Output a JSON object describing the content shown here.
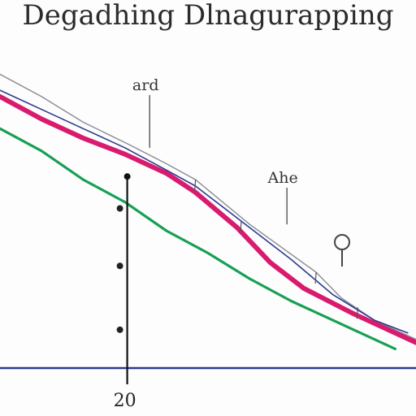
{
  "chart_data": {
    "type": "line",
    "title": "Degadhing Dlnagurapping",
    "xlim": [
      0,
      100
    ],
    "ylim": [
      0,
      100
    ],
    "grid": false,
    "x_tick_labels": [
      {
        "x": 30,
        "label": "20"
      }
    ],
    "series": [
      {
        "color": "#8a8a95",
        "points": [
          [
            0,
            92
          ],
          [
            10,
            85
          ],
          [
            20,
            77
          ],
          [
            31,
            70
          ],
          [
            40,
            64
          ],
          [
            47,
            59
          ],
          [
            60,
            45
          ],
          [
            76,
            30
          ],
          [
            82,
            22
          ],
          [
            90,
            15
          ],
          [
            100,
            9
          ]
        ]
      },
      {
        "color": "#2b3a8f",
        "points": [
          [
            0,
            87
          ],
          [
            10,
            81
          ],
          [
            20,
            75
          ],
          [
            30,
            69
          ],
          [
            40,
            62
          ],
          [
            47,
            57
          ],
          [
            58,
            46
          ],
          [
            70,
            34
          ],
          [
            80,
            23
          ],
          [
            90,
            15
          ],
          [
            98,
            11
          ]
        ]
      },
      {
        "color": "#d81b6e",
        "points": [
          [
            0,
            85
          ],
          [
            10,
            78
          ],
          [
            20,
            72
          ],
          [
            30,
            67
          ],
          [
            40,
            61
          ],
          [
            47,
            55
          ],
          [
            57,
            44
          ],
          [
            65,
            33
          ],
          [
            73,
            25
          ],
          [
            85,
            17
          ],
          [
            100,
            8
          ]
        ]
      },
      {
        "color": "#17a055",
        "points": [
          [
            0,
            75
          ],
          [
            10,
            68
          ],
          [
            20,
            59
          ],
          [
            30,
            52
          ],
          [
            40,
            43
          ],
          [
            50,
            36
          ],
          [
            60,
            28
          ],
          [
            70,
            21
          ],
          [
            80,
            15
          ],
          [
            95,
            6
          ]
        ]
      }
    ],
    "annotations": [
      {
        "text": "ard",
        "x": 35,
        "y": 87,
        "anchor_x": 35,
        "anchor_y": 69
      },
      {
        "text": "Ahe",
        "x": 68,
        "y": 58,
        "anchor_x": 68,
        "anchor_y": 45
      }
    ],
    "vertical_marker": {
      "x": 30,
      "y_top": 60,
      "points_y": [
        50,
        32,
        12
      ]
    },
    "baseline": {
      "y": 0,
      "color": "#2b3a8f"
    },
    "colors": {
      "background": "#fdfdfd",
      "axis": "#111111"
    }
  }
}
